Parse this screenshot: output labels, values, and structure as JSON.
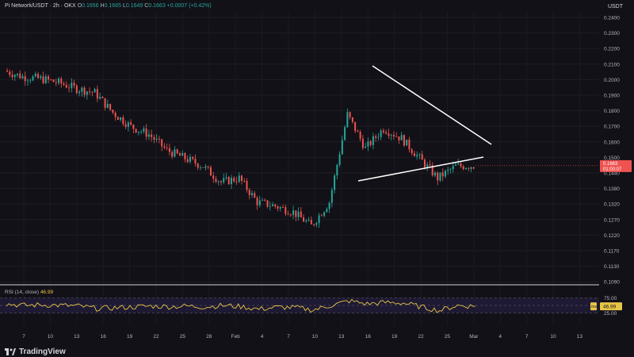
{
  "header": {
    "symbol": "Pi Network/USDT · 2h · OKX",
    "open_label": "O",
    "open": "0.1656",
    "high_label": "H",
    "high": "0.1665",
    "low_label": "L",
    "low": "0.1649",
    "close_label": "C",
    "close": "0.1663",
    "change": "+0.0007 (+0.42%)",
    "currency": "USDT"
  },
  "rsi": {
    "label": "RSI (14, close)",
    "value": "46.99",
    "tag_label": "RSI",
    "levels": [
      "75.00",
      "25.00"
    ]
  },
  "price_axis": {
    "ticks": [
      "0.2400",
      "0.2300",
      "0.2200",
      "0.2100",
      "0.2000",
      "0.1900",
      "0.1800",
      "0.1700",
      "0.1600",
      "0.1500",
      "0.1440",
      "0.1380",
      "0.1320",
      "0.1270",
      "0.1220",
      "0.1170",
      "0.1130",
      "0.1090"
    ],
    "last_price": "0.1663",
    "countdown": "01:00:07"
  },
  "time_axis": {
    "ticks": [
      "7",
      "10",
      "13",
      "16",
      "19",
      "22",
      "25",
      "28",
      "Feb",
      "4",
      "7",
      "10",
      "13",
      "16",
      "19",
      "22",
      "25",
      "Mar",
      "4",
      "7",
      "10",
      "13"
    ]
  },
  "brand": "TradingView",
  "colors": {
    "up": "#26a69a",
    "down": "#ef5350",
    "rsi_line": "#e8c547",
    "trendline": "#ffffff",
    "last_price_tag": "#ef5350"
  },
  "chart_data": {
    "type": "candlestick",
    "pattern": "symmetrical triangle",
    "x": [
      "Jan 5",
      "Jan 8",
      "Jan 11",
      "Jan 14",
      "Jan 17",
      "Jan 19",
      "Jan 20",
      "Jan 22",
      "Jan 24",
      "Jan 26",
      "Jan 28",
      "Jan 30",
      "Feb 1",
      "Feb 3",
      "Feb 5",
      "Feb 7",
      "Feb 9",
      "Feb 11",
      "Feb 13",
      "Feb 14",
      "Feb 15",
      "Feb 17",
      "Feb 19",
      "Feb 21",
      "Feb 23",
      "Feb 25",
      "Feb 27"
    ],
    "close": [
      0.214,
      0.211,
      0.21,
      0.208,
      0.205,
      0.203,
      0.193,
      0.186,
      0.182,
      0.174,
      0.17,
      0.166,
      0.158,
      0.16,
      0.148,
      0.146,
      0.143,
      0.136,
      0.148,
      0.192,
      0.175,
      0.185,
      0.18,
      0.17,
      0.16,
      0.166,
      0.1663
    ],
    "rsi": [
      55,
      50,
      52,
      50,
      48,
      40,
      42,
      45,
      48,
      46,
      48,
      45,
      50,
      46,
      38,
      44,
      43,
      35,
      50,
      65,
      55,
      60,
      58,
      45,
      33,
      50,
      47
    ],
    "ylim": [
      0.106,
      0.244
    ],
    "rsi_ylim": [
      0,
      100
    ]
  }
}
